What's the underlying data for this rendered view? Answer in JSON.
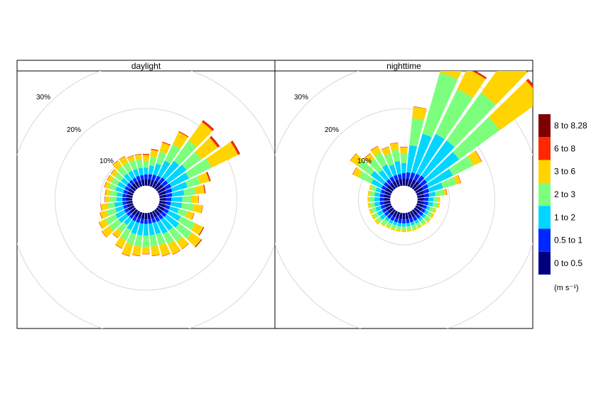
{
  "chart_data": {
    "type": "windrose",
    "panels": [
      {
        "strip_label": "daylight",
        "ring_labels": [
          "10%",
          "20%",
          "30%"
        ],
        "directions_deg": [
          0,
          10,
          20,
          30,
          40,
          50,
          60,
          70,
          80,
          90,
          100,
          110,
          120,
          130,
          140,
          150,
          160,
          170,
          180,
          190,
          200,
          210,
          220,
          230,
          240,
          250,
          260,
          270,
          280,
          290,
          300,
          310,
          320,
          330,
          340,
          350
        ],
        "cumulative_percent_by_band": [
          [
            1.5,
            2.5,
            4.0,
            5.5,
            6.8,
            7.0,
            7.0
          ],
          [
            1.5,
            2.6,
            4.5,
            6.5,
            8.0,
            8.2,
            8.2
          ],
          [
            1.5,
            2.7,
            5.2,
            8.0,
            10.0,
            10.2,
            10.2
          ],
          [
            1.6,
            2.8,
            6.5,
            10.5,
            13.5,
            13.7,
            13.7
          ],
          [
            1.7,
            3.0,
            7.5,
            13.0,
            18.0,
            18.4,
            18.5
          ],
          [
            1.7,
            3.0,
            8.0,
            12.0,
            16.5,
            16.9,
            17.0
          ],
          [
            1.8,
            3.2,
            7.5,
            13.0,
            19.5,
            19.9,
            20.0
          ],
          [
            1.6,
            3.0,
            6.5,
            9.5,
            11.5,
            11.7,
            11.8
          ],
          [
            1.5,
            2.8,
            5.5,
            8.0,
            10.0,
            10.1,
            10.2
          ],
          [
            1.4,
            2.6,
            5.0,
            7.0,
            8.5,
            8.6,
            8.6
          ],
          [
            1.4,
            2.5,
            5.0,
            7.5,
            9.5,
            9.6,
            9.6
          ],
          [
            1.4,
            2.5,
            4.5,
            6.5,
            8.0,
            8.1,
            8.1
          ],
          [
            1.5,
            2.6,
            5.5,
            9.0,
            11.0,
            11.1,
            11.2
          ],
          [
            1.5,
            2.6,
            6.0,
            9.5,
            12.0,
            12.1,
            12.2
          ],
          [
            1.5,
            2.5,
            5.5,
            8.5,
            10.5,
            10.6,
            10.6
          ],
          [
            1.4,
            2.5,
            5.5,
            8.0,
            10.5,
            10.6,
            10.6
          ],
          [
            1.4,
            2.4,
            5.0,
            7.5,
            10.0,
            10.1,
            10.1
          ],
          [
            1.4,
            2.4,
            5.0,
            7.5,
            9.5,
            9.6,
            9.6
          ],
          [
            1.4,
            2.4,
            5.0,
            7.5,
            9.0,
            9.1,
            9.1
          ],
          [
            1.4,
            2.4,
            5.0,
            7.5,
            9.5,
            9.6,
            9.6
          ],
          [
            1.4,
            2.4,
            5.0,
            7.5,
            10.0,
            10.1,
            10.1
          ],
          [
            1.4,
            2.4,
            4.5,
            7.0,
            9.0,
            9.1,
            9.1
          ],
          [
            1.4,
            2.3,
            4.0,
            6.0,
            7.5,
            7.6,
            7.6
          ],
          [
            1.4,
            2.3,
            4.5,
            7.0,
            9.0,
            9.1,
            9.1
          ],
          [
            1.4,
            2.3,
            4.5,
            7.0,
            8.5,
            8.6,
            8.6
          ],
          [
            1.3,
            2.2,
            4.0,
            6.0,
            7.5,
            7.6,
            7.6
          ],
          [
            1.3,
            2.2,
            4.0,
            5.5,
            7.0,
            7.1,
            7.1
          ],
          [
            1.3,
            2.2,
            3.5,
            5.0,
            6.0,
            6.1,
            6.1
          ],
          [
            1.3,
            2.2,
            3.5,
            5.0,
            6.0,
            6.1,
            6.1
          ],
          [
            1.3,
            2.2,
            4.0,
            5.5,
            6.5,
            6.6,
            6.6
          ],
          [
            1.3,
            2.2,
            4.0,
            5.5,
            6.5,
            6.6,
            6.6
          ],
          [
            1.3,
            2.2,
            3.8,
            5.5,
            6.5,
            6.6,
            6.6
          ],
          [
            1.4,
            2.3,
            4.0,
            6.0,
            7.5,
            7.6,
            7.6
          ],
          [
            1.4,
            2.3,
            4.0,
            6.0,
            7.5,
            7.6,
            7.6
          ],
          [
            1.4,
            2.4,
            4.0,
            6.0,
            7.0,
            7.1,
            7.1
          ],
          [
            1.4,
            2.4,
            4.0,
            6.0,
            7.0,
            7.1,
            7.1
          ]
        ]
      },
      {
        "strip_label": "nighttime",
        "ring_labels": [
          "10%",
          "20%",
          "30%"
        ],
        "directions_deg": [
          0,
          10,
          20,
          30,
          40,
          50,
          60,
          70,
          80,
          90,
          100,
          110,
          120,
          130,
          140,
          150,
          160,
          170,
          180,
          190,
          200,
          210,
          220,
          230,
          240,
          250,
          260,
          270,
          280,
          290,
          300,
          310,
          320,
          330,
          340,
          350
        ],
        "cumulative_percent_by_band": [
          [
            1.6,
            2.8,
            5.0,
            7.0,
            8.5,
            8.6,
            8.6
          ],
          [
            1.7,
            3.0,
            9.0,
            15.0,
            17.5,
            17.6,
            17.6
          ],
          [
            1.8,
            3.2,
            12.0,
            26.0,
            30.0,
            30.3,
            30.4
          ],
          [
            1.8,
            3.3,
            13.0,
            24.0,
            29.0,
            29.3,
            29.4
          ],
          [
            1.9,
            3.5,
            13.0,
            26.0,
            36.0,
            36.5,
            36.6
          ],
          [
            1.8,
            3.3,
            12.0,
            23.0,
            34.5,
            35.0,
            35.1
          ],
          [
            1.7,
            3.0,
            9.0,
            14.0,
            16.0,
            16.1,
            16.1
          ],
          [
            1.6,
            2.8,
            6.0,
            9.0,
            10.0,
            10.1,
            10.1
          ],
          [
            1.5,
            2.6,
            4.0,
            6.0,
            6.5,
            6.6,
            6.6
          ],
          [
            1.4,
            2.4,
            3.5,
            4.5,
            5.0,
            5.0,
            5.0
          ],
          [
            1.4,
            2.4,
            3.5,
            4.5,
            5.0,
            5.0,
            5.0
          ],
          [
            1.4,
            2.3,
            3.0,
            4.0,
            4.5,
            4.5,
            4.5
          ],
          [
            1.4,
            2.3,
            3.0,
            4.0,
            4.5,
            4.5,
            4.5
          ],
          [
            1.4,
            2.3,
            3.0,
            4.0,
            4.4,
            4.4,
            4.4
          ],
          [
            1.4,
            2.3,
            3.0,
            3.8,
            4.2,
            4.2,
            4.2
          ],
          [
            1.4,
            2.3,
            3.0,
            3.8,
            4.2,
            4.2,
            4.2
          ],
          [
            1.4,
            2.3,
            3.0,
            3.8,
            4.2,
            4.2,
            4.2
          ],
          [
            1.4,
            2.3,
            3.0,
            3.8,
            4.2,
            4.2,
            4.2
          ],
          [
            1.4,
            2.3,
            3.0,
            3.8,
            4.2,
            4.2,
            4.2
          ],
          [
            1.4,
            2.3,
            3.0,
            3.8,
            4.2,
            4.2,
            4.2
          ],
          [
            1.4,
            2.3,
            3.0,
            3.8,
            4.2,
            4.2,
            4.2
          ],
          [
            1.4,
            2.3,
            3.0,
            3.8,
            4.2,
            4.2,
            4.2
          ],
          [
            1.4,
            2.3,
            3.0,
            4.0,
            4.4,
            4.4,
            4.4
          ],
          [
            1.4,
            2.3,
            3.5,
            4.5,
            5.0,
            5.0,
            5.0
          ],
          [
            1.4,
            2.3,
            3.5,
            4.5,
            5.0,
            5.0,
            5.0
          ],
          [
            1.4,
            2.3,
            3.5,
            4.5,
            5.0,
            5.0,
            5.0
          ],
          [
            1.4,
            2.3,
            3.5,
            4.5,
            5.0,
            5.0,
            5.0
          ],
          [
            1.4,
            2.3,
            3.5,
            4.5,
            5.0,
            5.0,
            5.0
          ],
          [
            1.4,
            2.3,
            3.5,
            4.5,
            5.0,
            5.0,
            5.0
          ],
          [
            1.4,
            2.3,
            3.5,
            4.5,
            5.0,
            5.0,
            5.0
          ],
          [
            1.5,
            2.5,
            5.0,
            8.0,
            9.5,
            9.6,
            9.6
          ],
          [
            1.5,
            2.5,
            6.0,
            9.5,
            11.5,
            11.6,
            11.6
          ],
          [
            1.5,
            2.5,
            5.0,
            8.0,
            9.5,
            9.6,
            9.6
          ],
          [
            1.5,
            2.6,
            5.5,
            8.5,
            10.0,
            10.1,
            10.1
          ],
          [
            1.5,
            2.6,
            5.0,
            7.5,
            9.0,
            9.1,
            9.1
          ],
          [
            1.5,
            2.6,
            5.5,
            8.0,
            9.5,
            9.6,
            9.6
          ]
        ]
      }
    ],
    "rings_percent": [
      10,
      20,
      30
    ],
    "hole_percent": 3,
    "legend": {
      "placement": "right",
      "units": "(m s⁻¹)",
      "items": [
        {
          "label": "0 to 0.5",
          "color": "#00007f"
        },
        {
          "label": "0.5 to 1",
          "color": "#0027ff"
        },
        {
          "label": "1 to 2",
          "color": "#00d6ff"
        },
        {
          "label": "2 to 3",
          "color": "#7dff7e"
        },
        {
          "label": "3 to 6",
          "color": "#ffd400"
        },
        {
          "label": "6 to 8",
          "color": "#ff2800"
        },
        {
          "label": "8 to 8.28",
          "color": "#7f0000"
        }
      ]
    },
    "grid": true
  }
}
